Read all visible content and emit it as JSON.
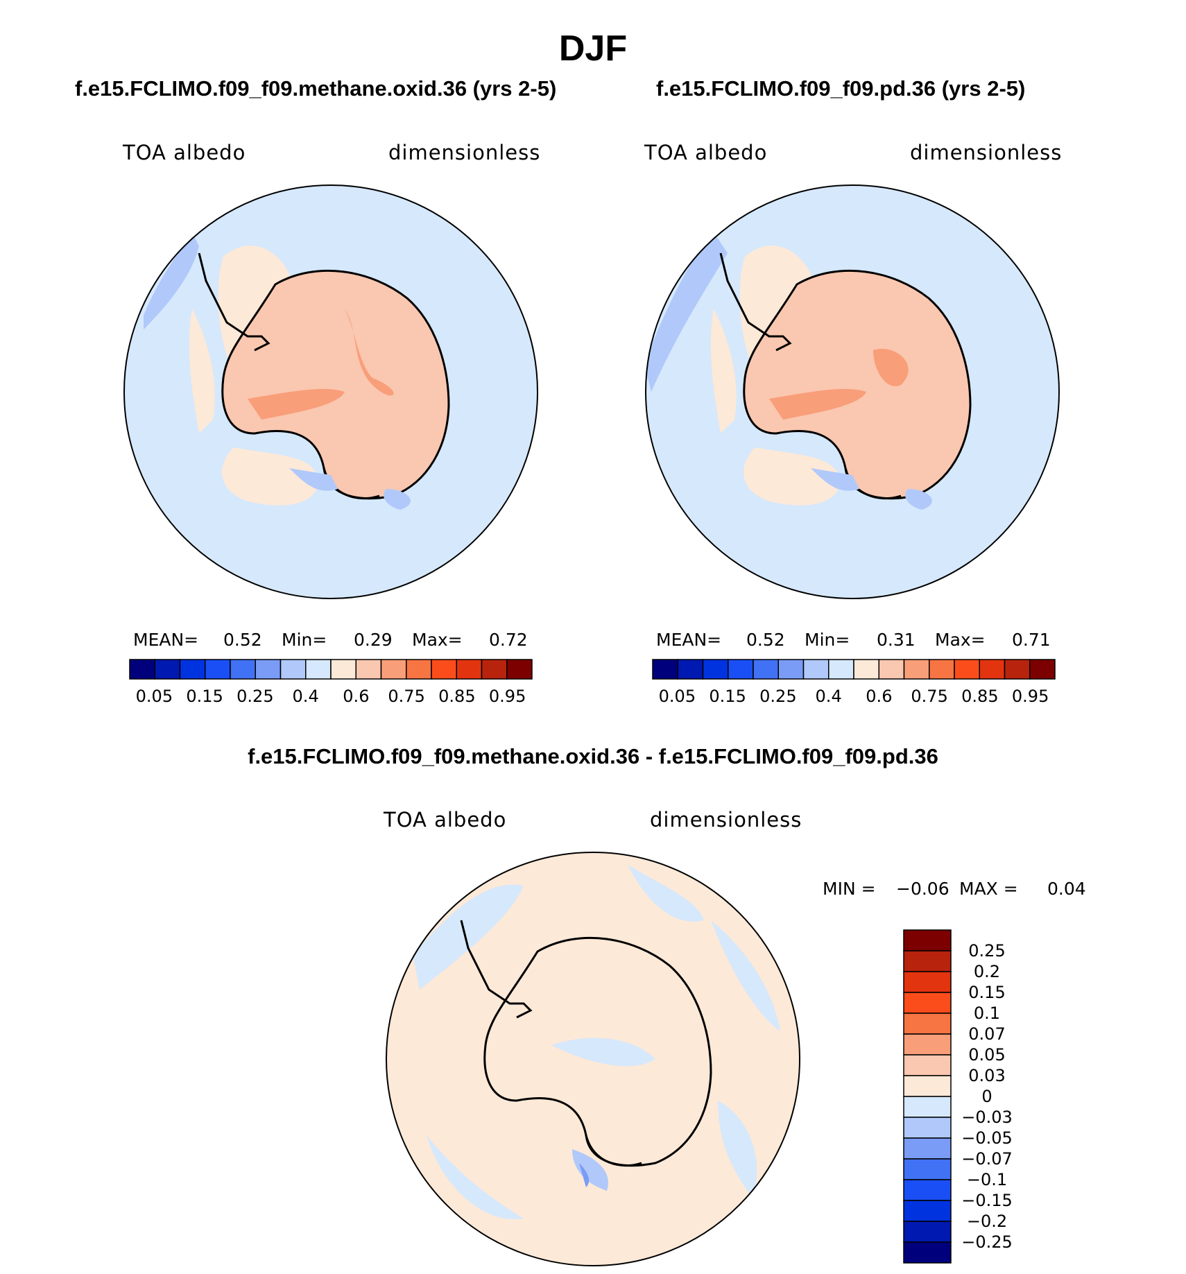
{
  "figure": {
    "season": "DJF"
  },
  "panel_left": {
    "title": "f.e15.FCLIMO.f09_f09.methane.oxid.36 (yrs 2-5)",
    "variable": "TOA albedo",
    "units": "dimensionless",
    "mean_label": "MEAN=",
    "mean_value": "0.52",
    "min_label": "Min=",
    "min_value": "0.29",
    "max_label": "Max=",
    "max_value": "0.72"
  },
  "panel_right": {
    "title": "f.e15.FCLIMO.f09_f09.pd.36 (yrs 2-5)",
    "variable": "TOA albedo",
    "units": "dimensionless",
    "mean_label": "MEAN=",
    "mean_value": "0.52",
    "min_label": "Min=",
    "min_value": "0.31",
    "max_label": "Max=",
    "max_value": "0.71"
  },
  "panel_diff": {
    "title": "f.e15.FCLIMO.f09_f09.methane.oxid.36 - f.e15.FCLIMO.f09_f09.pd.36",
    "variable": "TOA albedo",
    "units": "dimensionless",
    "min_label": "MIN =",
    "min_value": "−0.06",
    "max_label": "MAX =",
    "max_value": "0.04"
  },
  "colorbar_abs": {
    "colors": [
      "#00007d",
      "#0019b0",
      "#0033e0",
      "#1a4ff5",
      "#4172f5",
      "#7a9cf7",
      "#b0c9fa",
      "#d6e8fb",
      "#fde9d8",
      "#fac7b0",
      "#f89e79",
      "#f77443",
      "#fb4d1b",
      "#e33410",
      "#b8230d",
      "#7d0000"
    ],
    "ticks": [
      "0.05",
      "0.15",
      "0.25",
      "0.4",
      "0.6",
      "0.75",
      "0.85",
      "0.95"
    ]
  },
  "colorbar_diff": {
    "colors": [
      "#7d0000",
      "#b8230d",
      "#e33410",
      "#fb4d1b",
      "#f77443",
      "#f89e79",
      "#fac7b0",
      "#fde9d8",
      "#d6e8fb",
      "#b0c9fa",
      "#7a9cf7",
      "#4172f5",
      "#1a4ff5",
      "#0033e0",
      "#0019b0",
      "#00007d"
    ],
    "ticks": [
      "0.25",
      "0.2",
      "0.15",
      "0.1",
      "0.07",
      "0.05",
      "0.03",
      "0",
      "−0.03",
      "−0.05",
      "−0.07",
      "−0.1",
      "−0.15",
      "−0.2",
      "−0.25"
    ]
  }
}
